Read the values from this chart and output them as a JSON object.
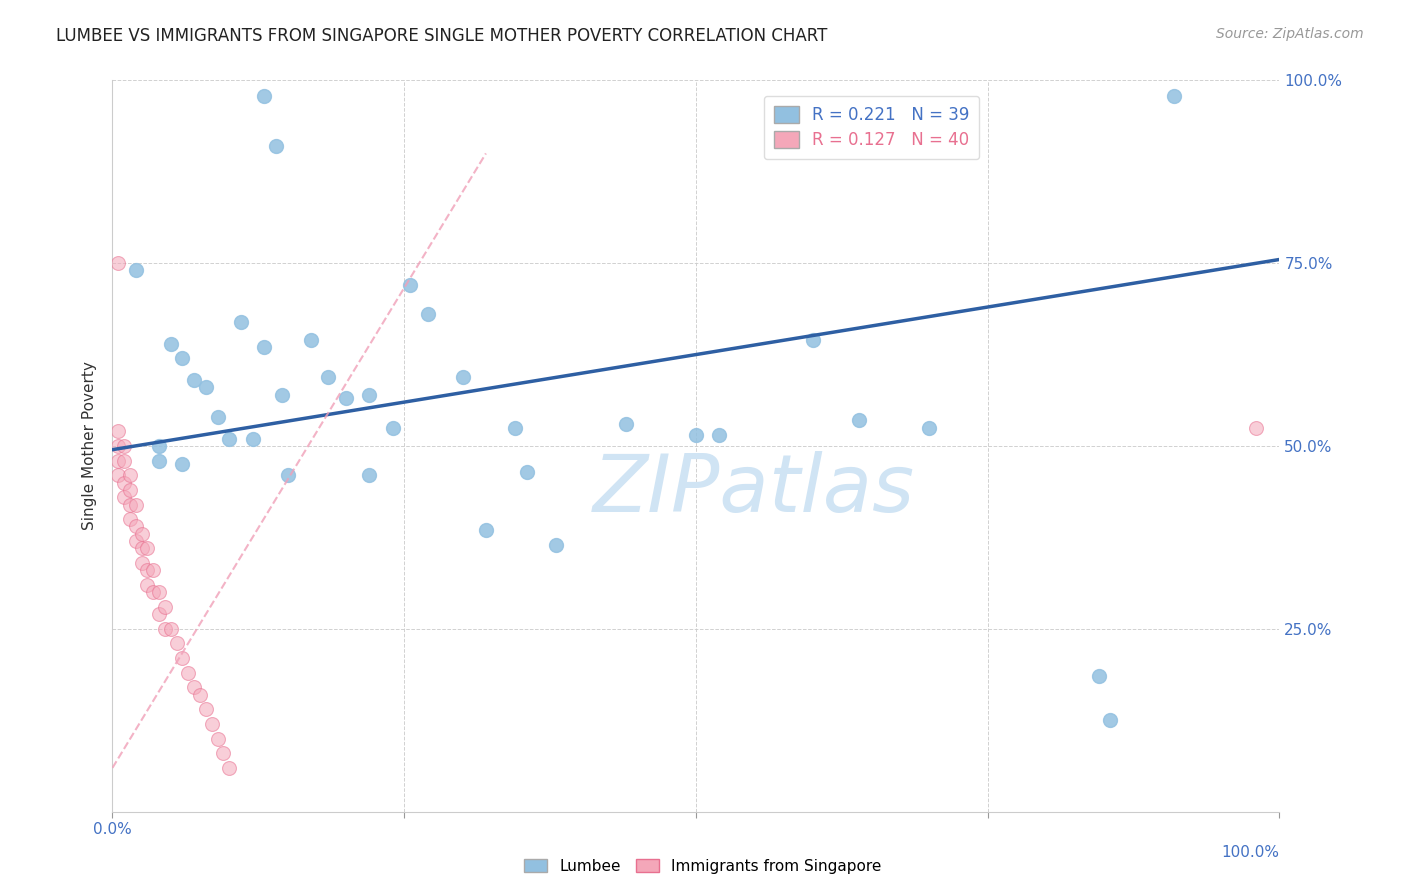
{
  "title": "LUMBEE VS IMMIGRANTS FROM SINGAPORE SINGLE MOTHER POVERTY CORRELATION CHART",
  "source": "Source: ZipAtlas.com",
  "ylabel": "Single Mother Poverty",
  "xlim": [
    0.0,
    1.0
  ],
  "ylim": [
    0.0,
    1.0
  ],
  "lumbee_R": 0.221,
  "lumbee_N": 39,
  "singapore_R": 0.127,
  "singapore_N": 40,
  "lumbee_color": "#92C0E0",
  "singapore_color": "#F4A7B9",
  "singapore_edge_color": "#E87090",
  "trend_blue_color": "#2E5FA3",
  "trend_pink_color": "#F0A0B8",
  "watermark_color": "#D0E4F4",
  "tick_color": "#4472C4",
  "background_color": "#FFFFFF",
  "grid_color": "#CCCCCC",
  "lumbee_x": [
    0.13,
    0.14,
    0.02,
    0.05,
    0.06,
    0.07,
    0.08,
    0.09,
    0.1,
    0.11,
    0.12,
    0.13,
    0.145,
    0.15,
    0.17,
    0.185,
    0.2,
    0.22,
    0.24,
    0.255,
    0.27,
    0.3,
    0.32,
    0.345,
    0.355,
    0.38,
    0.44,
    0.5,
    0.52,
    0.6,
    0.64,
    0.7,
    0.845,
    0.855,
    0.04,
    0.04,
    0.06,
    0.22,
    0.91
  ],
  "lumbee_y": [
    0.978,
    0.91,
    0.74,
    0.64,
    0.62,
    0.59,
    0.58,
    0.54,
    0.51,
    0.67,
    0.51,
    0.635,
    0.57,
    0.46,
    0.645,
    0.595,
    0.565,
    0.46,
    0.525,
    0.72,
    0.68,
    0.595,
    0.385,
    0.525,
    0.465,
    0.365,
    0.53,
    0.515,
    0.515,
    0.645,
    0.535,
    0.525,
    0.185,
    0.125,
    0.5,
    0.48,
    0.475,
    0.57,
    0.978
  ],
  "singapore_x": [
    0.005,
    0.005,
    0.005,
    0.005,
    0.005,
    0.01,
    0.01,
    0.01,
    0.01,
    0.015,
    0.015,
    0.015,
    0.015,
    0.02,
    0.02,
    0.02,
    0.025,
    0.025,
    0.025,
    0.03,
    0.03,
    0.03,
    0.035,
    0.035,
    0.04,
    0.04,
    0.045,
    0.045,
    0.05,
    0.055,
    0.06,
    0.065,
    0.07,
    0.075,
    0.08,
    0.085,
    0.09,
    0.095,
    0.1,
    0.98
  ],
  "singapore_y": [
    0.75,
    0.52,
    0.5,
    0.48,
    0.46,
    0.5,
    0.48,
    0.45,
    0.43,
    0.46,
    0.44,
    0.42,
    0.4,
    0.42,
    0.39,
    0.37,
    0.38,
    0.36,
    0.34,
    0.36,
    0.33,
    0.31,
    0.33,
    0.3,
    0.3,
    0.27,
    0.28,
    0.25,
    0.25,
    0.23,
    0.21,
    0.19,
    0.17,
    0.16,
    0.14,
    0.12,
    0.1,
    0.08,
    0.06,
    0.525
  ],
  "blue_trend_x": [
    0.0,
    1.0
  ],
  "blue_trend_y": [
    0.495,
    0.755
  ],
  "pink_trend_x": [
    0.0,
    0.32
  ],
  "pink_trend_y": [
    0.06,
    0.9
  ],
  "title_fontsize": 12,
  "axis_label_fontsize": 11,
  "tick_label_fontsize": 11,
  "legend_fontsize": 12,
  "marker_size": 100
}
